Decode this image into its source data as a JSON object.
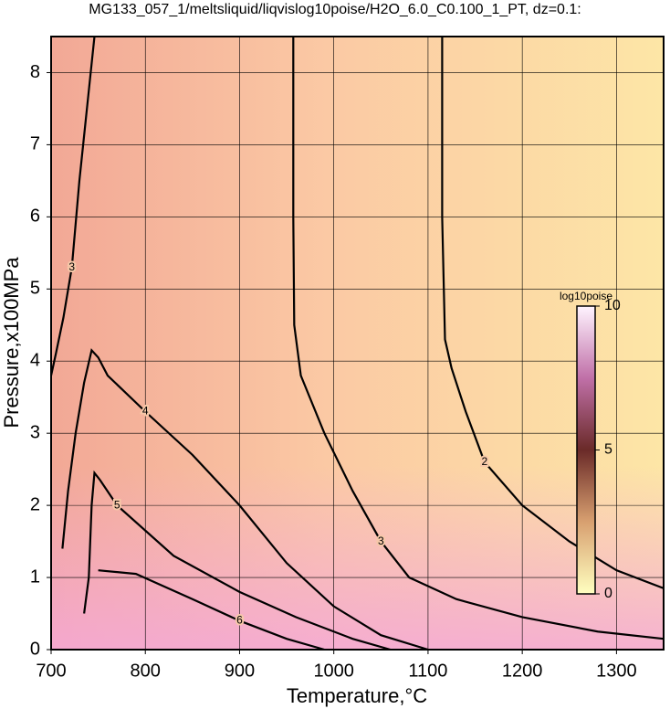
{
  "chart_data": {
    "type": "contour",
    "title": "MG133_057_1/meltsliquid/liqvislog10poise/H2O_6.0_C0.100_1_PT, dz=0.1:",
    "x_label": "Temperature,°C",
    "y_label": "Pressure,x100MPa",
    "xlim": [
      700,
      1350
    ],
    "ylim": [
      0,
      8.5
    ],
    "xticks": [
      700,
      800,
      900,
      1000,
      1100,
      1200,
      1300
    ],
    "yticks": [
      0,
      1,
      2,
      3,
      4,
      5,
      6,
      7,
      8
    ],
    "grid": true,
    "contours": [
      {
        "level": 2,
        "x": [
          1115,
          1115,
          1118,
          1125,
          1140,
          1160,
          1200,
          1250,
          1300,
          1350
        ],
        "y": [
          8.5,
          6.0,
          4.3,
          3.9,
          3.3,
          2.6,
          2.0,
          1.5,
          1.1,
          0.85
        ]
      },
      {
        "level": 3,
        "x": [
          957,
          957,
          958,
          965,
          990,
          1020,
          1050,
          1080,
          1130,
          1200,
          1280,
          1350
        ],
        "y": [
          8.5,
          6.0,
          4.5,
          3.8,
          3.0,
          2.2,
          1.5,
          1.0,
          0.7,
          0.45,
          0.25,
          0.15
        ]
      },
      {
        "level": 3,
        "x": [
          746,
          738,
          730,
          722,
          713,
          705,
          700
        ],
        "y": [
          8.5,
          7.5,
          6.5,
          5.3,
          4.6,
          4.1,
          3.8
        ]
      },
      {
        "level": 4,
        "x": [
          712,
          718,
          726,
          735,
          743,
          750,
          760,
          800,
          850,
          900,
          950,
          1000,
          1050,
          1100
        ],
        "y": [
          1.4,
          2.2,
          3.0,
          3.7,
          4.15,
          4.05,
          3.8,
          3.3,
          2.7,
          2.0,
          1.2,
          0.6,
          0.2,
          0
        ]
      },
      {
        "level": 5,
        "x": [
          735,
          740,
          743,
          746,
          752,
          770,
          830,
          900,
          960,
          1020,
          1060
        ],
        "y": [
          0.5,
          1.0,
          2.0,
          2.45,
          2.35,
          2.0,
          1.3,
          0.8,
          0.45,
          0.15,
          0
        ]
      },
      {
        "level": 6,
        "x": [
          750,
          790,
          850,
          900,
          950,
          990
        ],
        "y": [
          1.1,
          1.05,
          0.7,
          0.4,
          0.15,
          0
        ]
      }
    ],
    "colorbar": {
      "label": "log10poise",
      "lim": [
        0,
        10
      ],
      "ticks": [
        0,
        5,
        10
      ]
    }
  }
}
